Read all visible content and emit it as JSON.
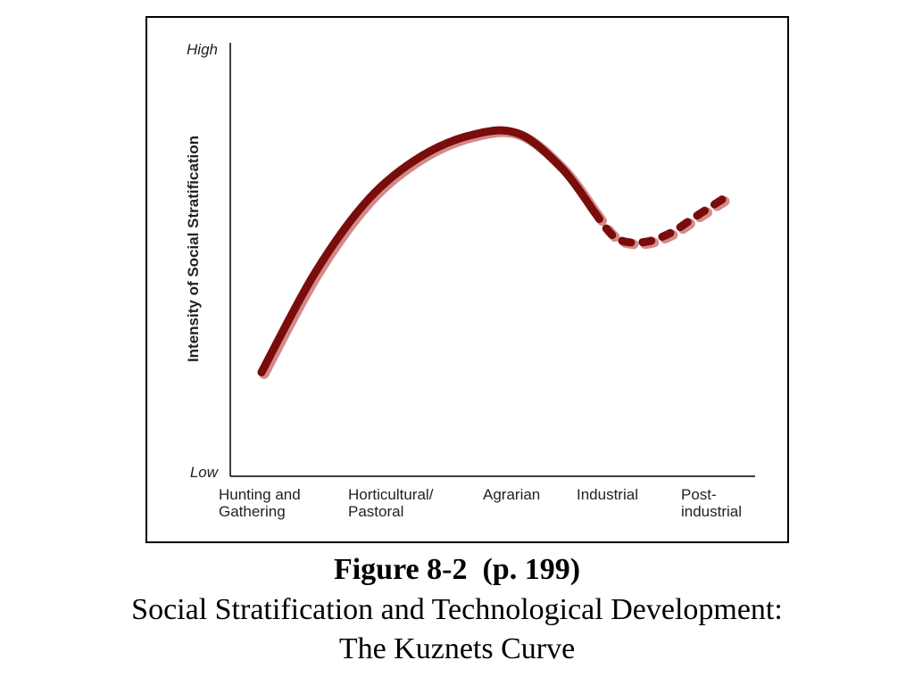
{
  "caption": {
    "figure_number": "Figure 8-2  (p. 199)",
    "title_line1": "Social Stratification and Technological Development:",
    "title_line2": "The Kuznets Curve"
  },
  "colors": {
    "curve": "#7a0c0c",
    "curve_shadow": "#d48a8a",
    "axis": "#000000"
  },
  "chart_data": {
    "type": "line",
    "title": "",
    "ylabel": "Intensity of Social Stratification",
    "xlabel": "",
    "y_end_labels": {
      "high": "High",
      "low": "Low"
    },
    "categories": [
      "Hunting and Gathering",
      "Horticultural/ Pastoral",
      "Agrarian",
      "Industrial",
      "Post- industrial"
    ],
    "category_label_lines": [
      [
        "Hunting and",
        "Gathering"
      ],
      [
        "Horticultural/",
        "Pastoral"
      ],
      [
        "Agrarian"
      ],
      [
        "Industrial"
      ],
      [
        "Post-",
        "industrial"
      ]
    ],
    "ylim": [
      0,
      100
    ],
    "grid": false,
    "legend": "none",
    "series": [
      {
        "style": "solid",
        "x": [
          0.0,
          0.5,
          1.0,
          1.5,
          2.0,
          2.4,
          2.8,
          3.1
        ],
        "y": [
          24,
          47,
          64,
          74,
          79,
          79,
          71,
          61
        ]
      },
      {
        "style": "dashed",
        "x": [
          3.1,
          3.3,
          3.55,
          3.8,
          4.05,
          4.3
        ],
        "y": [
          61,
          55,
          54,
          56,
          60,
          64
        ]
      }
    ]
  }
}
